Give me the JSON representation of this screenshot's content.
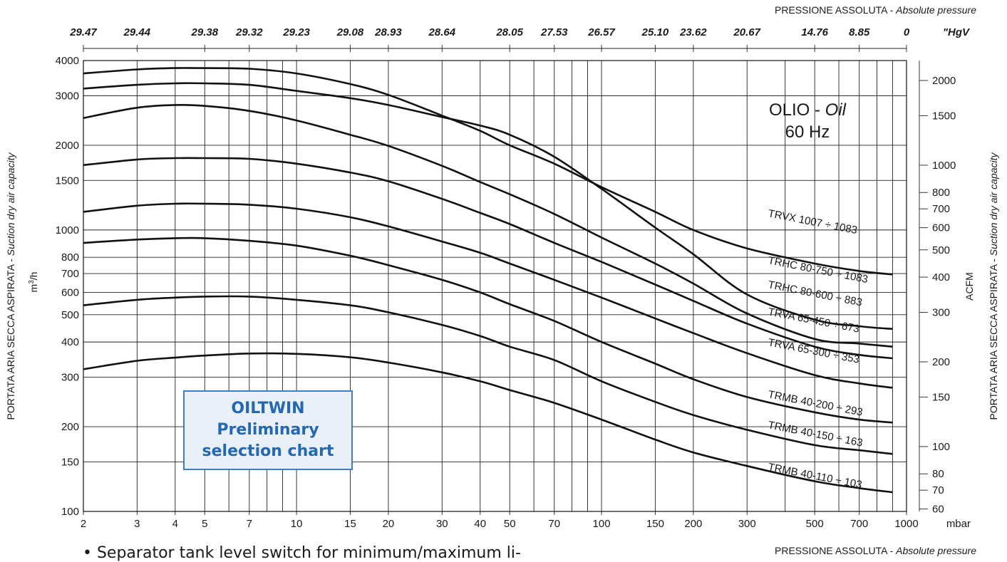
{
  "top_caption": {
    "main": "PRESSIONE ASSOLUTA - ",
    "italic": "Absolute pressure"
  },
  "bottom_caption": {
    "main": "PRESSIONE ASSOLUTA - ",
    "italic": "Absolute pressure"
  },
  "left_axis_title": {
    "main": "PORTATA ARIA SECCA ASPIRATA - ",
    "italic": "Suction dry air capacity"
  },
  "right_axis_title": {
    "main": "PORTATA ARIA SECCA ASPIRATA - ",
    "italic": "Suction dry air capacity"
  },
  "oil_label": {
    "main": "OLIO - ",
    "italic": "Oil",
    "freq": "60 Hz"
  },
  "badge": {
    "line1": "OILTWIN",
    "line2": "Preliminary",
    "line3": "selection chart"
  },
  "note": "• Separator tank level switch for minimum/maximum li-",
  "chart_data": {
    "type": "line",
    "x_scale": "log",
    "y_scale": "log",
    "xlim": [
      2,
      1000
    ],
    "ylim": [
      100,
      4000
    ],
    "x_unit": "mbar",
    "y_unit": "m³/h",
    "x_ticks": [
      2,
      3,
      4,
      5,
      7,
      10,
      15,
      20,
      30,
      40,
      50,
      70,
      100,
      150,
      200,
      300,
      500,
      700,
      1000
    ],
    "x_gridlines": [
      2,
      3,
      4,
      5,
      6,
      7,
      8,
      9,
      10,
      15,
      20,
      30,
      40,
      50,
      60,
      70,
      80,
      90,
      100,
      150,
      200,
      300,
      400,
      500,
      600,
      700,
      800,
      900,
      1000
    ],
    "y_ticks": [
      100,
      150,
      200,
      300,
      400,
      500,
      600,
      700,
      800,
      1000,
      1500,
      2000,
      3000,
      4000
    ],
    "top_axis": {
      "unit": "\"HgV",
      "labels": [
        {
          "text": "29.47",
          "at": 2
        },
        {
          "text": "29.44",
          "at": 3
        },
        {
          "text": "29.38",
          "at": 5
        },
        {
          "text": "29.32",
          "at": 7
        },
        {
          "text": "29.23",
          "at": 10
        },
        {
          "text": "29.08",
          "at": 15
        },
        {
          "text": "28.93",
          "at": 20
        },
        {
          "text": "28.64",
          "at": 30
        },
        {
          "text": "28.05",
          "at": 50
        },
        {
          "text": "27.53",
          "at": 70
        },
        {
          "text": "26.57",
          "at": 100
        },
        {
          "text": "25.10",
          "at": 150
        },
        {
          "text": "23.62",
          "at": 200
        },
        {
          "text": "20.67",
          "at": 300
        },
        {
          "text": "14.76",
          "at": 500
        },
        {
          "text": "8.85",
          "at": 700
        },
        {
          "text": "0",
          "at": 1000
        }
      ]
    },
    "right_axis": {
      "unit": "ACFM",
      "labels": [
        {
          "text": "2000",
          "at": 3398
        },
        {
          "text": "1500",
          "at": 2548
        },
        {
          "text": "1000",
          "at": 1699
        },
        {
          "text": "800",
          "at": 1359
        },
        {
          "text": "700",
          "at": 1189
        },
        {
          "text": "600",
          "at": 1019
        },
        {
          "text": "500",
          "at": 850
        },
        {
          "text": "400",
          "at": 680
        },
        {
          "text": "300",
          "at": 510
        },
        {
          "text": "200",
          "at": 340
        },
        {
          "text": "150",
          "at": 255
        },
        {
          "text": "100",
          "at": 170
        },
        {
          "text": "80",
          "at": 136
        },
        {
          "text": "70",
          "at": 119
        },
        {
          "text": "60",
          "at": 102
        }
      ]
    },
    "x": [
      2,
      3,
      4,
      5,
      7,
      10,
      15,
      20,
      30,
      40,
      50,
      70,
      100,
      150,
      200,
      300,
      500,
      700,
      900
    ],
    "series": [
      {
        "values": [
          3600,
          3720,
          3760,
          3760,
          3740,
          3600,
          3300,
          3020,
          2550,
          2250,
          2000,
          1720,
          1420,
          1160,
          1000,
          860,
          760,
          715,
          695
        ]
      },
      {
        "values": [
          3180,
          3280,
          3320,
          3320,
          3280,
          3120,
          2940,
          2780,
          2520,
          2350,
          2180,
          1820,
          1400,
          1020,
          820,
          590,
          480,
          455,
          445
        ]
      },
      {
        "values": [
          2500,
          2720,
          2780,
          2760,
          2650,
          2450,
          2180,
          1990,
          1690,
          1480,
          1340,
          1140,
          940,
          760,
          645,
          505,
          410,
          395,
          385
        ]
      },
      {
        "values": [
          1700,
          1780,
          1800,
          1800,
          1790,
          1720,
          1600,
          1490,
          1290,
          1150,
          1050,
          900,
          770,
          640,
          560,
          465,
          385,
          360,
          350
        ]
      },
      {
        "values": [
          1160,
          1220,
          1240,
          1240,
          1230,
          1190,
          1110,
          1030,
          910,
          830,
          760,
          665,
          575,
          485,
          430,
          365,
          305,
          285,
          275
        ]
      },
      {
        "values": [
          900,
          925,
          935,
          935,
          915,
          880,
          810,
          750,
          665,
          600,
          545,
          475,
          400,
          335,
          295,
          255,
          225,
          212,
          207
        ]
      },
      {
        "values": [
          540,
          565,
          575,
          580,
          580,
          565,
          540,
          510,
          460,
          420,
          385,
          345,
          290,
          245,
          220,
          195,
          172,
          165,
          160
        ]
      },
      {
        "values": [
          320,
          343,
          352,
          358,
          364,
          363,
          353,
          338,
          312,
          290,
          270,
          243,
          212,
          180,
          162,
          145,
          128,
          121,
          117
        ]
      }
    ],
    "labels": [
      "TRVX 1007 ÷ 1083",
      "TRHC 80-750 ÷ 1083",
      "TRHC 80-600 ÷ 883",
      "TRVA 65-450 ÷ 673",
      "TRVA 65-300 ÷ 353",
      "TRMB 40-200 ÷ 293",
      "TRMB 40-150 ÷ 163",
      "TRMB 40-110 ÷ 103"
    ]
  }
}
